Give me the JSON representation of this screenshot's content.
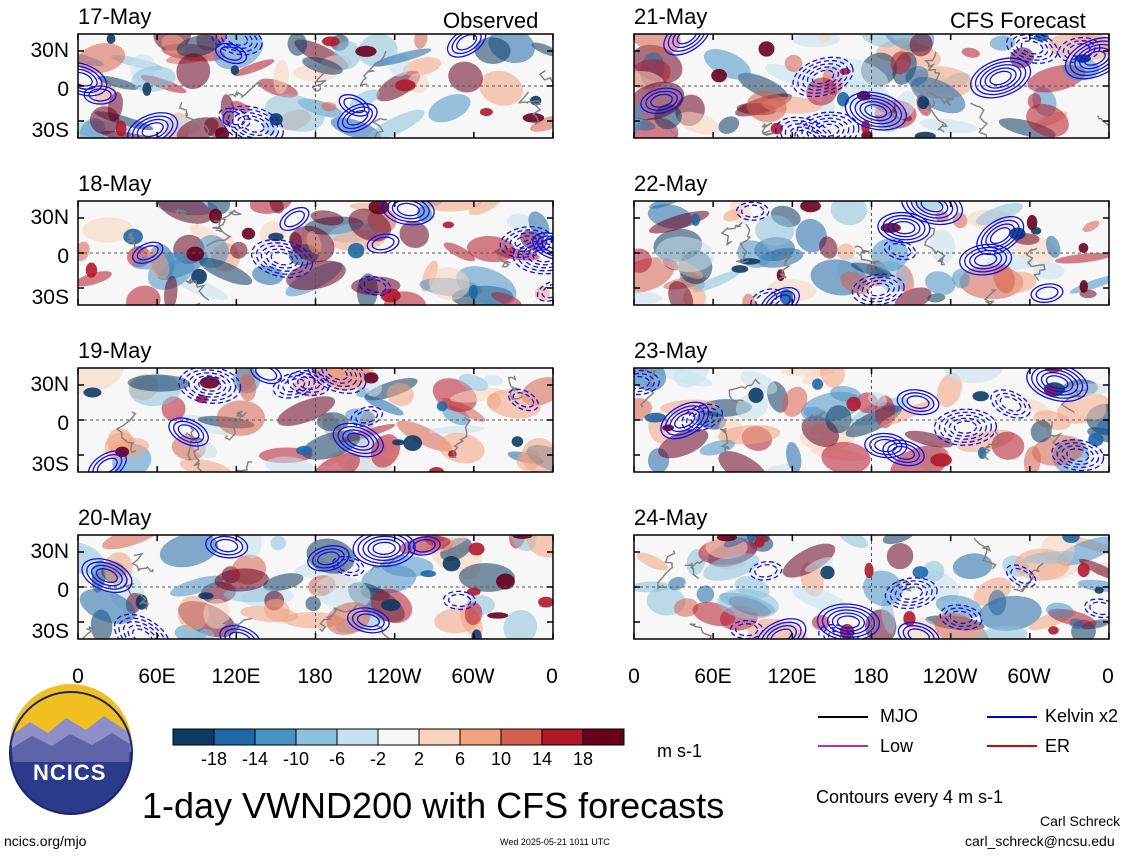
{
  "title": "1-day VWND200 with CFS forecasts",
  "site": "ncics.org/mjo",
  "timestamp": "Wed 2025-05-21 1011 UTC",
  "author": "Carl Schreck",
  "email": "carl_schreck@ncsu.edu",
  "logo": {
    "text": "NCICS"
  },
  "columns": {
    "left_title": "Observed",
    "right_title": "CFS Forecast"
  },
  "panels": {
    "left": [
      "17-May",
      "18-May",
      "19-May",
      "20-May"
    ],
    "right": [
      "21-May",
      "22-May",
      "23-May",
      "24-May"
    ]
  },
  "axis": {
    "lat_ticks": [
      "30N",
      "0",
      "30S"
    ],
    "lon_ticks": [
      "0",
      "60E",
      "120E",
      "180",
      "120W",
      "60W",
      "0"
    ]
  },
  "colorbar": {
    "unit": "m s-1",
    "labels": [
      "-18",
      "-14",
      "-10",
      "-6",
      "-2",
      "2",
      "6",
      "10",
      "14",
      "18"
    ],
    "colors": [
      "#0d3a63",
      "#1f67a6",
      "#4892c4",
      "#8cc1dd",
      "#c7e2ef",
      "#f7f7f7",
      "#f9d3bd",
      "#f2a27f",
      "#d6604d",
      "#b2182b",
      "#67001f"
    ]
  },
  "legend": {
    "items": [
      {
        "label": "MJO",
        "color": "#000000"
      },
      {
        "label": "Kelvin x2",
        "color": "#0000dd"
      },
      {
        "label": "Low",
        "color": "#b030c0"
      },
      {
        "label": "ER",
        "color": "#dd0000"
      }
    ],
    "contour_note": "Contours every 4 m s-1"
  },
  "chart_data": {
    "type": "heatmap",
    "variable": "VWND200",
    "unit": "m s-1",
    "x_range": [
      "0",
      "0"
    ],
    "y_range": [
      "30S",
      "30N"
    ],
    "contour_interval": 4,
    "color_levels": [
      -18,
      -14,
      -10,
      -6,
      -2,
      2,
      6,
      10,
      14,
      18
    ],
    "panels": [
      {
        "date": "17-May",
        "source": "Observed"
      },
      {
        "date": "18-May",
        "source": "Observed"
      },
      {
        "date": "19-May",
        "source": "Observed"
      },
      {
        "date": "20-May",
        "source": "Observed"
      },
      {
        "date": "21-May",
        "source": "CFS Forecast"
      },
      {
        "date": "22-May",
        "source": "CFS Forecast"
      },
      {
        "date": "23-May",
        "source": "CFS Forecast"
      },
      {
        "date": "24-May",
        "source": "CFS Forecast"
      }
    ]
  }
}
